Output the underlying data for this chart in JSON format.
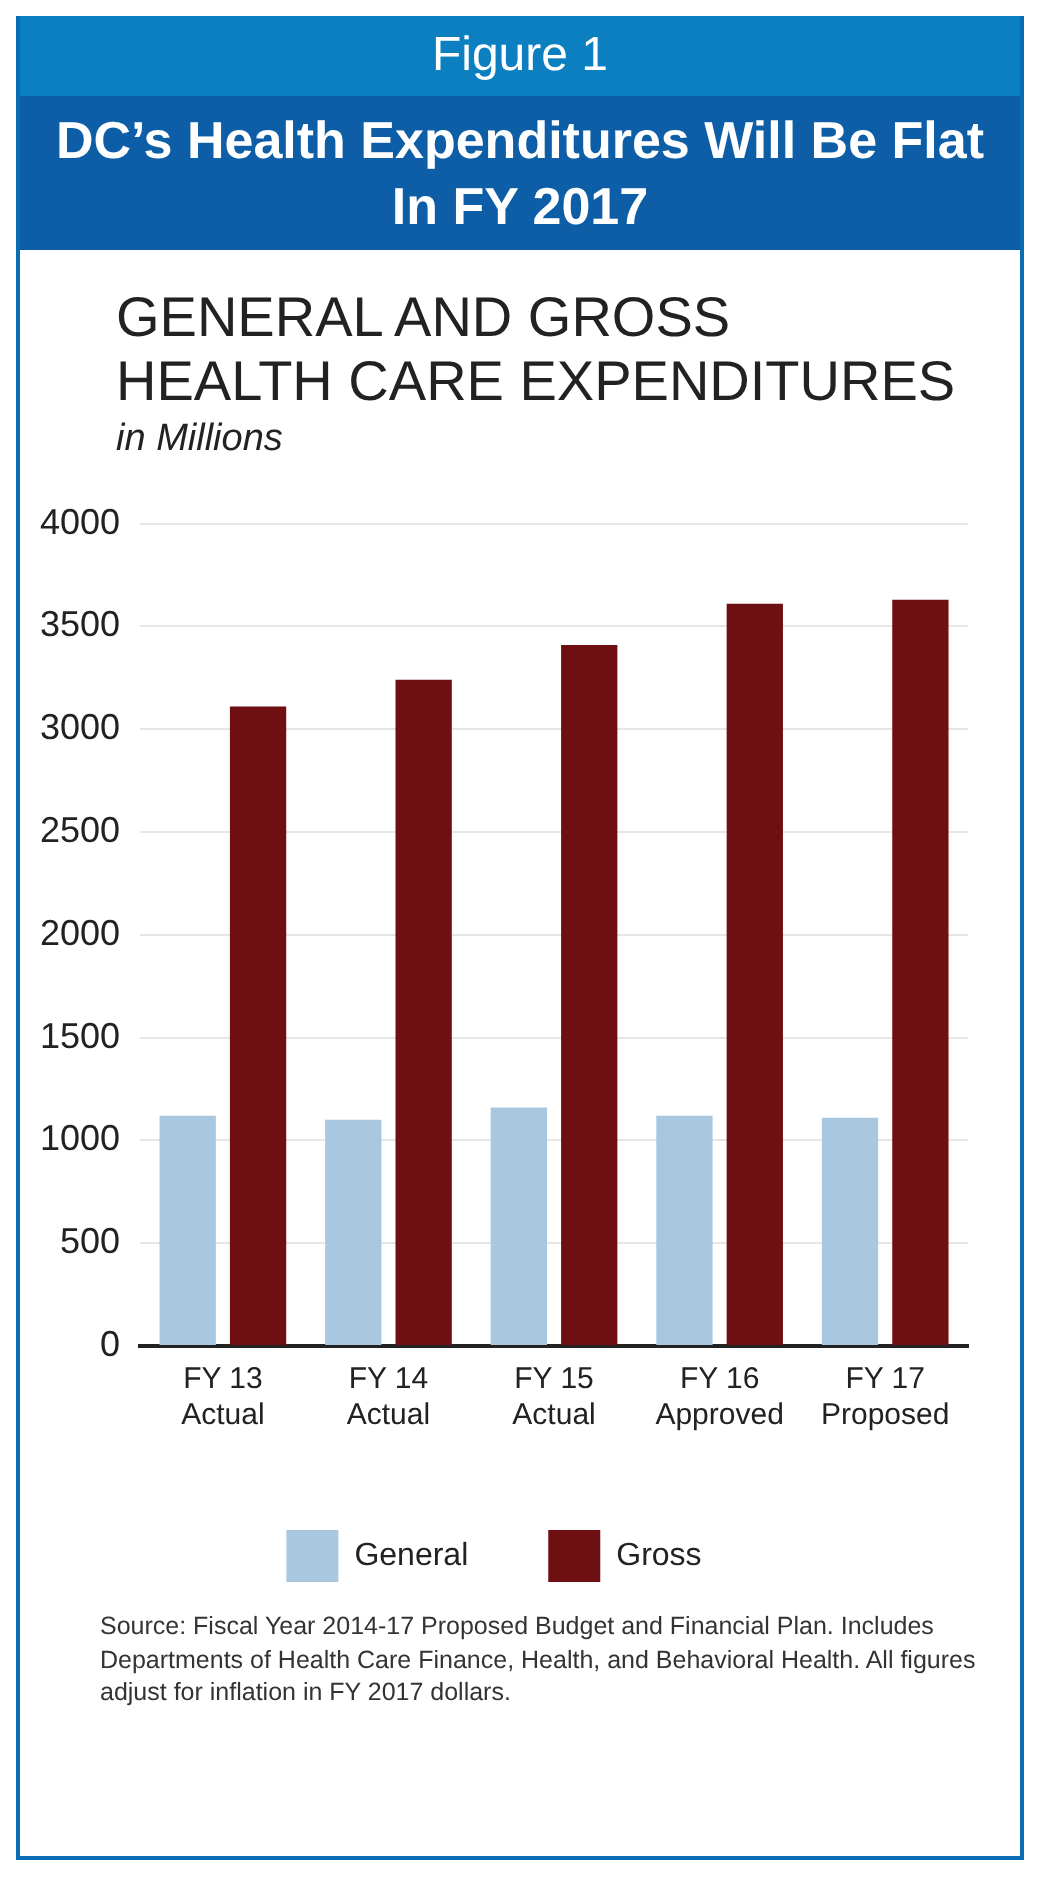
{
  "chart_data": {
    "type": "bar",
    "title": "DC’s Health Expenditures Will Be Flat In FY 2017",
    "subtitle": "GENERAL AND GROSS HEALTH CARE EXPENDITURES",
    "ylabel": "in Millions",
    "annotations": [
      "Figure 1",
      "Source: Fiscal Year 2014-17 Proposed Budget and Financial Plan. Includes Departments of Health Care Finance, Health, and Behavioral Health. All figures adjust for inflation in FY 2017 dollars."
    ],
    "categories": [
      "FY 13\nActual",
      "FY 14\nActual",
      "FY 15\nActual",
      "FY 16\nApproved",
      "FY 17\nProposed"
    ],
    "series": [
      {
        "name": "General",
        "color": "#a9c8e0",
        "values": [
          1120,
          1100,
          1160,
          1120,
          1110
        ]
      },
      {
        "name": "Gross",
        "color": "#6e0f12",
        "values": [
          3110,
          3240,
          3410,
          3610,
          3630
        ]
      }
    ],
    "ylim": [
      0,
      4000
    ],
    "yticks": [
      0,
      500,
      1000,
      1500,
      2000,
      2500,
      3000,
      3500,
      4000
    ],
    "grid": "y",
    "legend": "bottom"
  }
}
